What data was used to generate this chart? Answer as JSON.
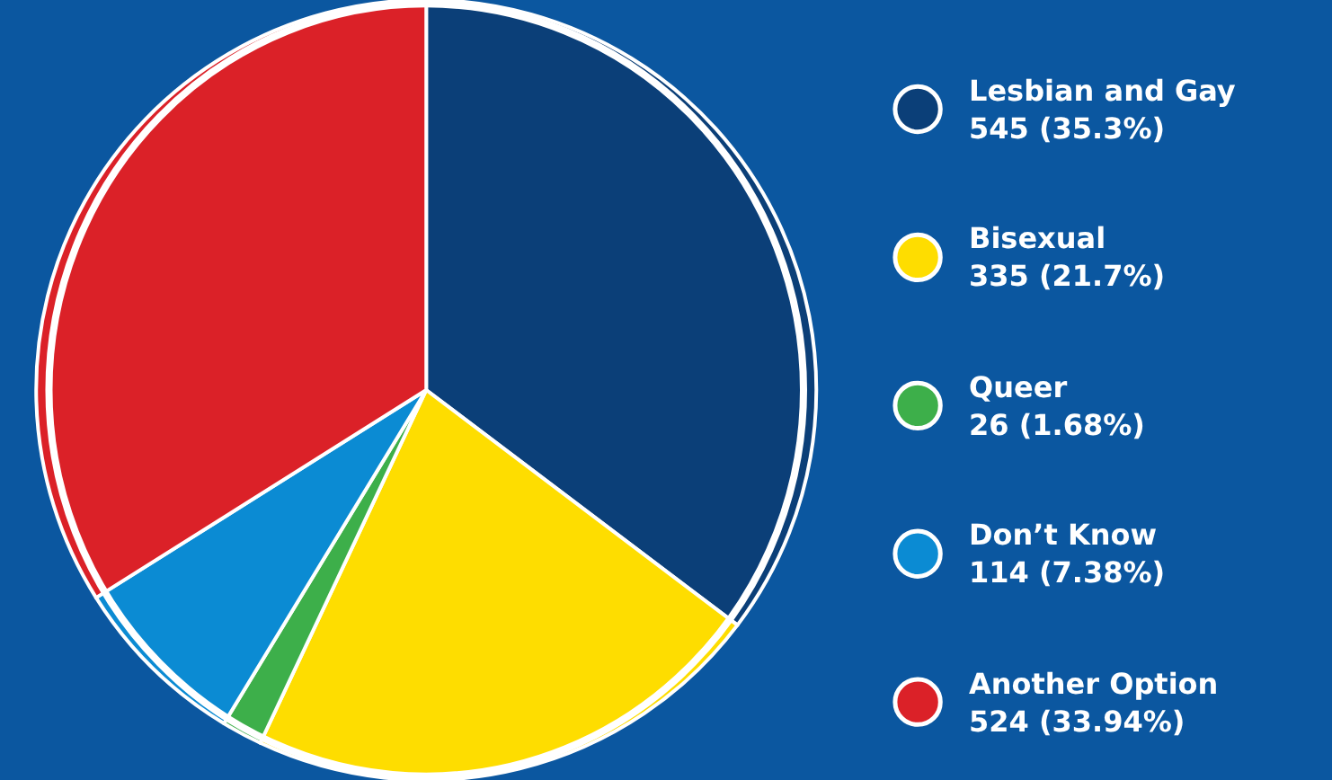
{
  "chart_data": {
    "type": "pie",
    "categories": [
      "Lesbian and Gay",
      "Bisexual",
      "Queer",
      "Don’t Know",
      "Another Option"
    ],
    "values": [
      545,
      335,
      26,
      114,
      524
    ],
    "value_labels": [
      "545 (35.3%)",
      "335 (21.7%)",
      "26 (1.68%)",
      "114 (7.38%)",
      "524 (33.94%)"
    ],
    "colors": [
      "#0b3f78",
      "#fedd00",
      "#3daf4a",
      "#0b8bd3",
      "#db2128"
    ],
    "legend": "right"
  }
}
